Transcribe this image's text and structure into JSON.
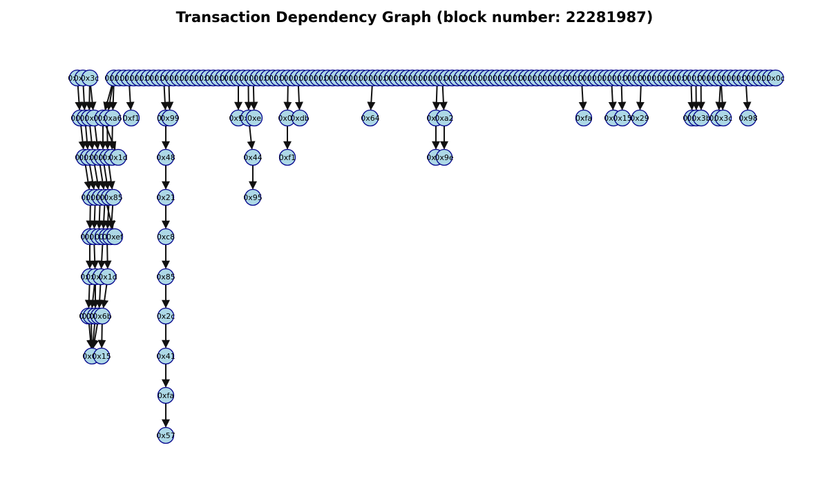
{
  "title": "Transaction Dependency Graph (block number: 22281987)",
  "colors": {
    "node_fill": "#add8e6",
    "node_stroke": "#00008b",
    "edge": "#111111",
    "background": "#ffffff"
  },
  "top_row_start": [
    "0x78",
    "0x8c",
    "0x3c"
  ],
  "top_row_end": [
    "0x0c",
    "0x4c",
    "0x0c"
  ],
  "levels": [
    [
      "0x08",
      "0x0e",
      "0x2a",
      "0x3a",
      "0xf1",
      "0xc9",
      "0x99",
      "0x1e",
      "0x0e",
      "0xdb",
      "0x64",
      "0x0b",
      "0xa2",
      "0xfa",
      "0x07",
      "0x15",
      "0x29",
      "0x88",
      "0x3b",
      "0xa5",
      "0x3c",
      "0x98"
    ],
    [
      "0x06",
      "0x8b",
      "0x61",
      "0x0d",
      "0x48",
      "0x44",
      "0xf1",
      "0x14",
      "0x9e"
    ],
    [
      "0x02",
      "0x39",
      "0x85",
      "0x21",
      "0x95"
    ],
    [
      "0x00",
      "0x12",
      "0xef",
      "0xc8"
    ],
    [
      "0x02",
      "0x76",
      "0x1d",
      "0x85"
    ],
    [
      "0x06",
      "0xea",
      "0x6b",
      "0x2c"
    ],
    [
      "0x04",
      "0x15",
      "0x41"
    ],
    [
      "0xfa"
    ],
    [
      "0x57"
    ]
  ]
}
